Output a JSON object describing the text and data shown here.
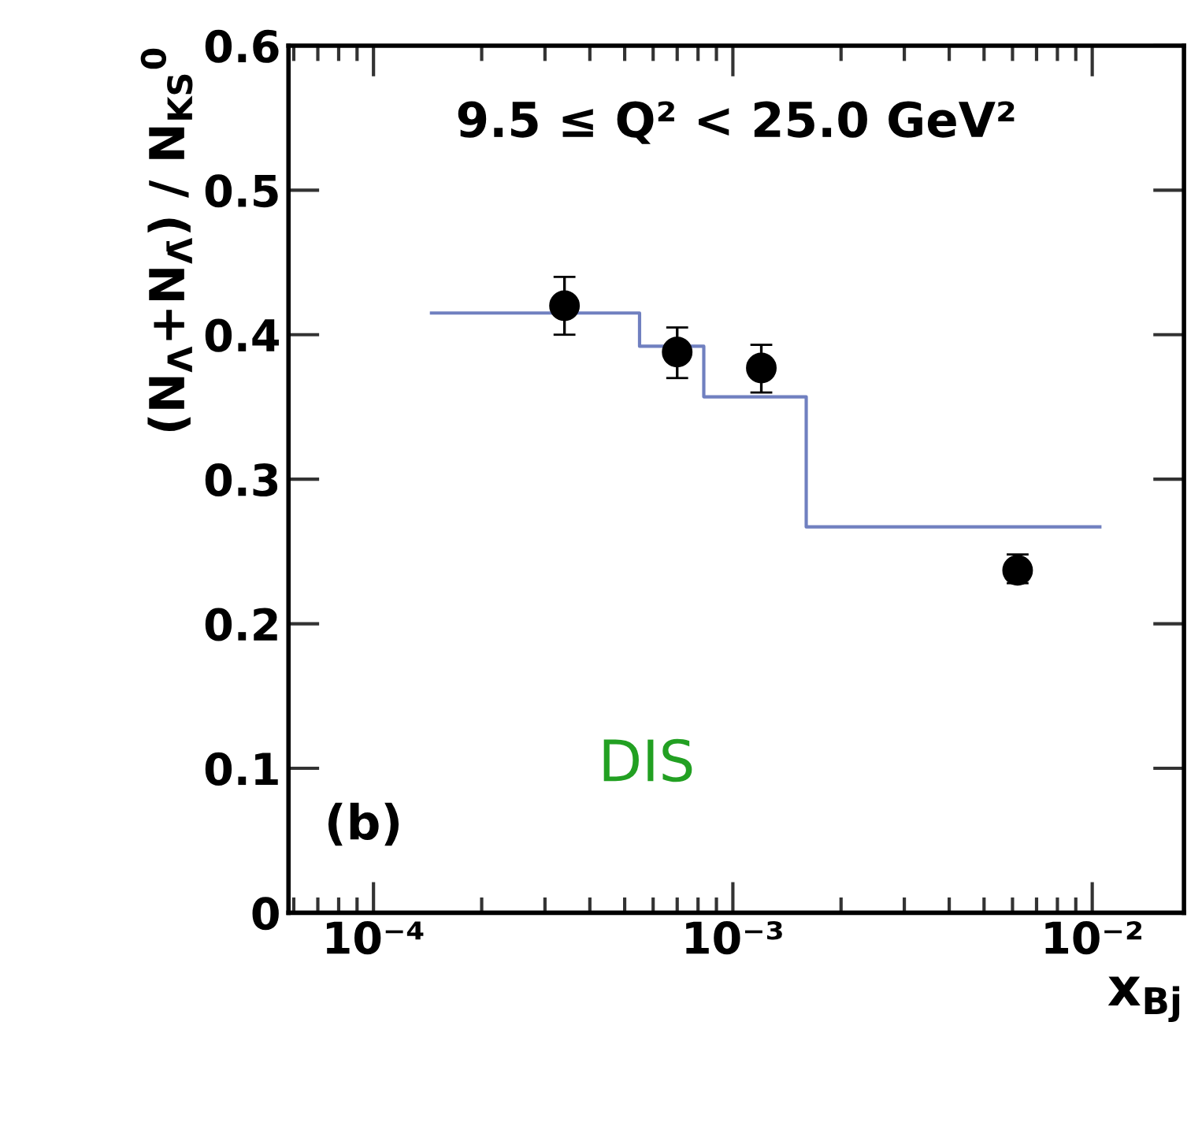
{
  "chart_data": {
    "type": "scatter",
    "xlabel": "x$_{Bj}$",
    "ylabel": "(N$_{Λ}$+N$_{Λ̄}$) / N$_{KS}$$^{0}$",
    "annotations": [
      "9.5 ≤ Q² < 25.0 GeV²",
      "(b)",
      "DIS"
    ],
    "log": "x",
    "xlim": [
      5.8e-05,
      0.018
    ],
    "xticks": [
      {
        "value": 0.0001,
        "label": "10⁻⁴"
      },
      {
        "value": 0.001,
        "label": "10⁻³"
      },
      {
        "value": 0.01,
        "label": "10⁻²"
      }
    ],
    "ylim": [
      0,
      0.6
    ],
    "yticks": [
      0,
      0.1,
      0.2,
      0.3,
      0.4,
      0.5,
      0.6
    ],
    "grid": false,
    "series": [
      {
        "type": "scatter",
        "marker": "circle",
        "color": "#000000",
        "x": [
          0.00034,
          0.0007,
          0.0012,
          0.0062
        ],
        "values": [
          0.42,
          0.388,
          0.377,
          0.237
        ],
        "errors": [
          [
            0.4,
            0.44
          ],
          [
            0.37,
            0.405
          ],
          [
            0.36,
            0.393
          ],
          [
            0.228,
            0.248
          ]
        ]
      },
      {
        "type": "step",
        "color": "#7080c0",
        "x": [
          0.000145,
          0.00055,
          0.00083,
          0.0016,
          0.0105
        ],
        "values": [
          0.415,
          0.392,
          0.357,
          0.267,
          0.267
        ]
      }
    ]
  }
}
